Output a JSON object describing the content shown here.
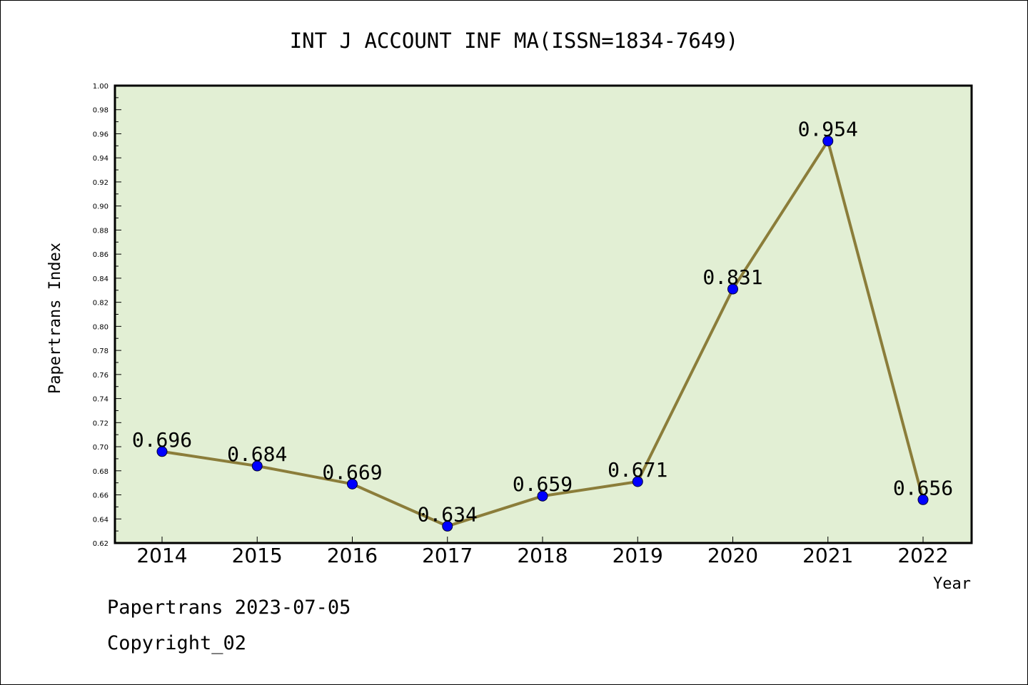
{
  "chart_data": {
    "type": "line",
    "title": "INT J ACCOUNT INF MA(ISSN=1834-7649)",
    "xlabel": "Year",
    "ylabel": "Papertrans Index",
    "categories": [
      "2014",
      "2015",
      "2016",
      "2017",
      "2018",
      "2019",
      "2020",
      "2021",
      "2022"
    ],
    "series": [
      {
        "values": [
          0.696,
          0.684,
          0.669,
          0.634,
          0.659,
          0.671,
          0.831,
          0.954,
          0.656
        ],
        "data_labels": [
          "0.696",
          "0.684",
          "0.669",
          "0.634",
          "0.659",
          "0.671",
          "0.831",
          "0.954",
          "0.656"
        ],
        "line_color": "#8b7d3a",
        "marker_color": "#0000ff"
      }
    ],
    "ylim": [
      0.62,
      1.0
    ],
    "yticks": [
      "0.62",
      "0.64",
      "0.66",
      "0.68",
      "0.70",
      "0.72",
      "0.74",
      "0.76",
      "0.78",
      "0.80",
      "0.82",
      "0.84",
      "0.86",
      "0.88",
      "0.90",
      "0.92",
      "0.94",
      "0.96",
      "0.98",
      "1.00"
    ],
    "plot_background": "#e2efd4",
    "grid": false,
    "legend": "none"
  },
  "footer": {
    "line1": "Papertrans 2023-07-05",
    "line2": "Copyright_02"
  }
}
